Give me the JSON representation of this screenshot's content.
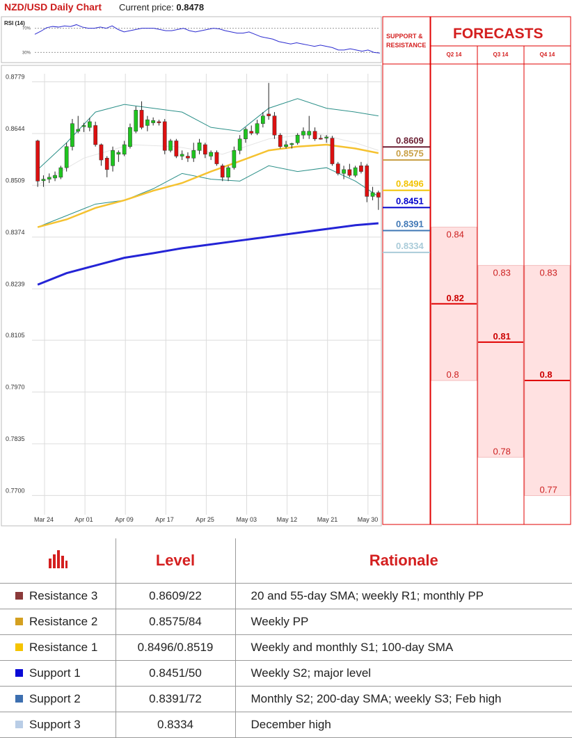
{
  "header": {
    "title": "NZD/USD Daily Chart",
    "current_price_label": "Current price:",
    "current_price": "0.8478"
  },
  "rsi": {
    "label": "RSI (14)",
    "upper": "70%",
    "lower": "30%"
  },
  "sr_header": "SUPPORT &\nRESISTANCE",
  "forecast_header": "FORECASTS",
  "colors": {
    "resistance3": "#6b1f33",
    "resistance2": "#c9a047",
    "resistance1": "#f2c200",
    "support1": "#0000cc",
    "support2": "#3f77b5",
    "support3": "#a9cbd9",
    "bull": "#1fc41f",
    "bear": "#dd1010",
    "sma_short": "#f5c230",
    "sma_long": "#2424d6",
    "band": "#2a8f88",
    "forecast_fill": "#ffe1e1",
    "forecast_line": "#e00000"
  },
  "chart_data": [
    {
      "type": "candlestick",
      "title": "NZD/USD Daily Chart",
      "ylim": [
        0.765,
        0.88
      ],
      "y_ticks": [
        "0.8779",
        "0.8644",
        "0.8509",
        "0.8374",
        "0.8239",
        "0.8105",
        "0.7970",
        "0.7835",
        "0.7700"
      ],
      "x_ticks": [
        "Mar 24",
        "Apr 01",
        "Apr 09",
        "Apr 17",
        "Apr 25",
        "May 03",
        "May 12",
        "May 21",
        "May 30"
      ],
      "candles": [
        {
          "o": 0.8625,
          "h": 0.8628,
          "l": 0.8505,
          "c": 0.852
        },
        {
          "o": 0.8521,
          "h": 0.8535,
          "l": 0.8505,
          "c": 0.8525
        },
        {
          "o": 0.8525,
          "h": 0.854,
          "l": 0.8515,
          "c": 0.853
        },
        {
          "o": 0.8528,
          "h": 0.8545,
          "l": 0.852,
          "c": 0.8535
        },
        {
          "o": 0.853,
          "h": 0.856,
          "l": 0.8525,
          "c": 0.8555
        },
        {
          "o": 0.8555,
          "h": 0.862,
          "l": 0.8545,
          "c": 0.861
        },
        {
          "o": 0.861,
          "h": 0.8682,
          "l": 0.86,
          "c": 0.867
        },
        {
          "o": 0.865,
          "h": 0.869,
          "l": 0.8645,
          "c": 0.8655
        },
        {
          "o": 0.8662,
          "h": 0.8672,
          "l": 0.8648,
          "c": 0.8665
        },
        {
          "o": 0.866,
          "h": 0.8685,
          "l": 0.865,
          "c": 0.8675
        },
        {
          "o": 0.8665,
          "h": 0.8675,
          "l": 0.861,
          "c": 0.8615
        },
        {
          "o": 0.8615,
          "h": 0.8618,
          "l": 0.856,
          "c": 0.8575
        },
        {
          "o": 0.858,
          "h": 0.8585,
          "l": 0.853,
          "c": 0.855
        },
        {
          "o": 0.856,
          "h": 0.861,
          "l": 0.8545,
          "c": 0.86
        },
        {
          "o": 0.859,
          "h": 0.86,
          "l": 0.857,
          "c": 0.8595
        },
        {
          "o": 0.859,
          "h": 0.8625,
          "l": 0.8585,
          "c": 0.8615
        },
        {
          "o": 0.861,
          "h": 0.867,
          "l": 0.8605,
          "c": 0.866
        },
        {
          "o": 0.865,
          "h": 0.8715,
          "l": 0.8645,
          "c": 0.8705
        },
        {
          "o": 0.8705,
          "h": 0.8728,
          "l": 0.8655,
          "c": 0.866
        },
        {
          "o": 0.8665,
          "h": 0.869,
          "l": 0.865,
          "c": 0.868
        },
        {
          "o": 0.8672,
          "h": 0.8686,
          "l": 0.8665,
          "c": 0.8678
        },
        {
          "o": 0.8675,
          "h": 0.868,
          "l": 0.8665,
          "c": 0.8672
        },
        {
          "o": 0.8675,
          "h": 0.8682,
          "l": 0.859,
          "c": 0.86
        },
        {
          "o": 0.86,
          "h": 0.863,
          "l": 0.8595,
          "c": 0.8625
        },
        {
          "o": 0.8625,
          "h": 0.863,
          "l": 0.858,
          "c": 0.8585
        },
        {
          "o": 0.8585,
          "h": 0.86,
          "l": 0.8575,
          "c": 0.859
        },
        {
          "o": 0.8585,
          "h": 0.8595,
          "l": 0.857,
          "c": 0.858
        },
        {
          "o": 0.858,
          "h": 0.862,
          "l": 0.857,
          "c": 0.86
        },
        {
          "o": 0.86,
          "h": 0.863,
          "l": 0.859,
          "c": 0.862
        },
        {
          "o": 0.8615,
          "h": 0.862,
          "l": 0.858,
          "c": 0.859
        },
        {
          "o": 0.8585,
          "h": 0.86,
          "l": 0.8575,
          "c": 0.8595
        },
        {
          "o": 0.8595,
          "h": 0.86,
          "l": 0.856,
          "c": 0.8565
        },
        {
          "o": 0.856,
          "h": 0.8565,
          "l": 0.852,
          "c": 0.853
        },
        {
          "o": 0.853,
          "h": 0.856,
          "l": 0.852,
          "c": 0.8555
        },
        {
          "o": 0.8555,
          "h": 0.861,
          "l": 0.855,
          "c": 0.86
        },
        {
          "o": 0.86,
          "h": 0.864,
          "l": 0.859,
          "c": 0.863
        },
        {
          "o": 0.863,
          "h": 0.866,
          "l": 0.862,
          "c": 0.8655
        },
        {
          "o": 0.865,
          "h": 0.8665,
          "l": 0.864,
          "c": 0.8645
        },
        {
          "o": 0.8645,
          "h": 0.868,
          "l": 0.864,
          "c": 0.867
        },
        {
          "o": 0.867,
          "h": 0.87,
          "l": 0.866,
          "c": 0.869
        },
        {
          "o": 0.8695,
          "h": 0.8776,
          "l": 0.868,
          "c": 0.869
        },
        {
          "o": 0.869,
          "h": 0.87,
          "l": 0.863,
          "c": 0.864
        },
        {
          "o": 0.864,
          "h": 0.8645,
          "l": 0.8605,
          "c": 0.861
        },
        {
          "o": 0.861,
          "h": 0.8625,
          "l": 0.8605,
          "c": 0.8615
        },
        {
          "o": 0.8615,
          "h": 0.862,
          "l": 0.8605,
          "c": 0.8618
        },
        {
          "o": 0.862,
          "h": 0.8645,
          "l": 0.8615,
          "c": 0.864
        },
        {
          "o": 0.864,
          "h": 0.866,
          "l": 0.863,
          "c": 0.865
        },
        {
          "o": 0.864,
          "h": 0.869,
          "l": 0.863,
          "c": 0.865
        },
        {
          "o": 0.865,
          "h": 0.866,
          "l": 0.8625,
          "c": 0.863
        },
        {
          "o": 0.8632,
          "h": 0.864,
          "l": 0.8628,
          "c": 0.863
        },
        {
          "o": 0.8632,
          "h": 0.864,
          "l": 0.862,
          "c": 0.8635
        },
        {
          "o": 0.8632,
          "h": 0.8638,
          "l": 0.856,
          "c": 0.8565
        },
        {
          "o": 0.8565,
          "h": 0.857,
          "l": 0.8535,
          "c": 0.854
        },
        {
          "o": 0.854,
          "h": 0.856,
          "l": 0.8525,
          "c": 0.855
        },
        {
          "o": 0.855,
          "h": 0.8565,
          "l": 0.853,
          "c": 0.8535
        },
        {
          "o": 0.8535,
          "h": 0.856,
          "l": 0.853,
          "c": 0.8555
        },
        {
          "o": 0.856,
          "h": 0.857,
          "l": 0.854,
          "c": 0.8545
        },
        {
          "o": 0.856,
          "h": 0.8565,
          "l": 0.8465,
          "c": 0.848
        },
        {
          "o": 0.848,
          "h": 0.8505,
          "l": 0.847,
          "c": 0.849
        },
        {
          "o": 0.849,
          "h": 0.8495,
          "l": 0.8445,
          "c": 0.8478
        }
      ],
      "sma_short": [
        [
          0,
          0.84
        ],
        [
          5,
          0.842
        ],
        [
          10,
          0.845
        ],
        [
          15,
          0.847
        ],
        [
          20,
          0.8495
        ],
        [
          25,
          0.8515
        ],
        [
          30,
          0.8545
        ],
        [
          35,
          0.8572
        ],
        [
          40,
          0.86
        ],
        [
          45,
          0.861
        ],
        [
          50,
          0.8615
        ],
        [
          55,
          0.8605
        ],
        [
          59,
          0.8593
        ]
      ],
      "sma_long": [
        [
          0,
          0.825
        ],
        [
          5,
          0.828
        ],
        [
          10,
          0.83
        ],
        [
          15,
          0.832
        ],
        [
          20,
          0.8332
        ],
        [
          25,
          0.8345
        ],
        [
          30,
          0.8355
        ],
        [
          35,
          0.8365
        ],
        [
          40,
          0.8375
        ],
        [
          45,
          0.8385
        ],
        [
          50,
          0.8395
        ],
        [
          55,
          0.8405
        ],
        [
          59,
          0.841
        ]
      ],
      "band_upper": [
        [
          0,
          0.855
        ],
        [
          5,
          0.862
        ],
        [
          10,
          0.87
        ],
        [
          15,
          0.872
        ],
        [
          20,
          0.871
        ],
        [
          25,
          0.87
        ],
        [
          30,
          0.866
        ],
        [
          35,
          0.865
        ],
        [
          40,
          0.871
        ],
        [
          45,
          0.8735
        ],
        [
          50,
          0.871
        ],
        [
          55,
          0.87
        ],
        [
          59,
          0.869
        ]
      ],
      "band_lower": [
        [
          0,
          0.84
        ],
        [
          5,
          0.843
        ],
        [
          10,
          0.846
        ],
        [
          15,
          0.847
        ],
        [
          20,
          0.85
        ],
        [
          25,
          0.854
        ],
        [
          30,
          0.8525
        ],
        [
          35,
          0.852
        ],
        [
          40,
          0.856
        ],
        [
          45,
          0.8545
        ],
        [
          50,
          0.8555
        ],
        [
          55,
          0.852
        ],
        [
          59,
          0.848
        ]
      ],
      "band_mid": [
        [
          0,
          0.851
        ],
        [
          8,
          0.858
        ],
        [
          16,
          0.8615
        ],
        [
          24,
          0.861
        ],
        [
          32,
          0.859
        ],
        [
          40,
          0.863
        ],
        [
          48,
          0.8645
        ],
        [
          55,
          0.862
        ],
        [
          59,
          0.86
        ]
      ]
    },
    {
      "type": "line",
      "title": "RSI (14)",
      "ylim": [
        20,
        80
      ],
      "y": [
        60,
        65,
        71,
        73,
        72,
        74,
        73,
        76,
        72,
        70,
        70,
        72,
        70,
        74,
        68,
        64,
        66,
        68,
        70,
        70,
        70,
        68,
        66,
        66,
        68,
        70,
        66,
        64,
        66,
        68,
        70,
        69,
        66,
        64,
        62,
        62,
        64,
        60,
        56,
        54,
        52,
        48,
        46,
        44,
        46,
        44,
        42,
        40,
        42,
        40,
        38,
        34,
        34,
        36,
        34,
        32,
        34,
        30,
        29
      ]
    },
    {
      "type": "levels",
      "title": "SUPPORT & RESISTANCE",
      "values": [
        0.8609,
        0.8575,
        0.8496,
        0.8451,
        0.8391,
        0.8334
      ]
    },
    {
      "type": "bar",
      "title": "FORECASTS",
      "categories": [
        "Q2 14",
        "Q3 14",
        "Q4 14"
      ],
      "series": [
        {
          "name": "high",
          "values": [
            0.84,
            0.83,
            0.83
          ]
        },
        {
          "name": "mid",
          "values": [
            0.82,
            0.81,
            0.8
          ]
        },
        {
          "name": "low",
          "values": [
            0.8,
            0.78,
            0.77
          ]
        }
      ]
    }
  ],
  "sr_levels": [
    {
      "value": "0.8609",
      "color": "#6b1f33"
    },
    {
      "value": "0.8575",
      "color": "#c9a047"
    },
    {
      "value": "0.8496",
      "color": "#f2c200"
    },
    {
      "value": "0.8451",
      "color": "#0000cc"
    },
    {
      "value": "0.8391",
      "color": "#3f77b5"
    },
    {
      "value": "0.8334",
      "color": "#a9cbd9"
    }
  ],
  "forecasts": [
    {
      "quarter": "Q2 14",
      "high": "0.84",
      "mid": "0.82",
      "low": "0.8"
    },
    {
      "quarter": "Q3 14",
      "high": "0.83",
      "mid": "0.81",
      "low": "0.78"
    },
    {
      "quarter": "Q4 14",
      "high": "0.83",
      "mid": "0.8",
      "low": "0.77"
    }
  ],
  "table": {
    "headers": {
      "level": "Level",
      "rationale": "Rationale"
    },
    "rows": [
      {
        "name": "Resistance 3",
        "level": "0.8609/22",
        "rationale": "20 and 55-day SMA; weekly R1; monthly PP",
        "color": "#8b3a3a"
      },
      {
        "name": "Resistance 2",
        "level": "0.8575/84",
        "rationale": "Weekly PP",
        "color": "#d4a020"
      },
      {
        "name": "Resistance 1",
        "level": "0.8496/0.8519",
        "rationale": "Weekly and monthly S1; 100-day SMA",
        "color": "#f5c400"
      },
      {
        "name": "Support 1",
        "level": "0.8451/50",
        "rationale": "Weekly S2; major level",
        "color": "#0a0ad6"
      },
      {
        "name": "Support 2",
        "level": "0.8391/72",
        "rationale": "Monthly S2; 200-day SMA; weekly S3; Feb high",
        "color": "#3d6fb0"
      },
      {
        "name": "Support 3",
        "level": "0.8334",
        "rationale": "December high",
        "color": "#b9cde6"
      }
    ]
  }
}
